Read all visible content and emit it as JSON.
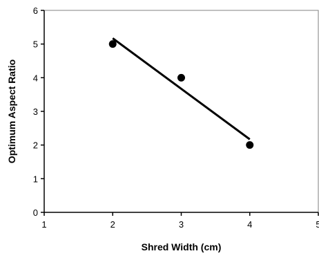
{
  "chart_data": {
    "type": "scatter",
    "xlabel": "Shred Width (cm)",
    "ylabel": "Optimum Aspect Ratio",
    "xlim": [
      1,
      5
    ],
    "ylim": [
      0,
      6
    ],
    "xticks": [
      1,
      2,
      3,
      4,
      5
    ],
    "yticks": [
      0,
      1,
      2,
      3,
      4,
      5,
      6
    ],
    "grid": false,
    "legend": "none",
    "series": [
      {
        "type": "scatter",
        "x": [
          2,
          3,
          4
        ],
        "y": [
          5,
          4,
          2
        ]
      },
      {
        "type": "line",
        "x": [
          2,
          4
        ],
        "y": [
          5.17,
          2.17
        ]
      }
    ],
    "colors": {
      "marker": "#000000",
      "line": "#000000",
      "axis": "#000000"
    }
  }
}
